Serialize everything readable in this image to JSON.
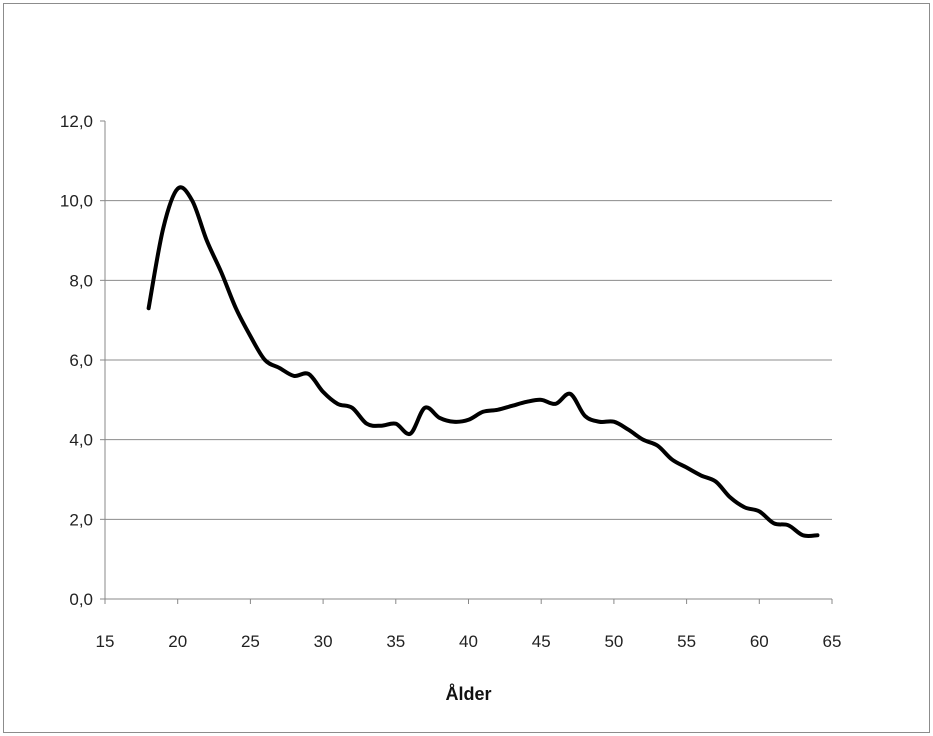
{
  "chart_data": {
    "type": "line",
    "title": "",
    "xlabel": "Ålder",
    "ylabel": "",
    "xlim": [
      15,
      65
    ],
    "ylim": [
      0,
      12
    ],
    "x_ticks": [
      15,
      20,
      25,
      30,
      35,
      40,
      45,
      50,
      55,
      60,
      65
    ],
    "x_tick_labels": [
      "15",
      "20",
      "25",
      "30",
      "35",
      "40",
      "45",
      "50",
      "55",
      "60",
      "65"
    ],
    "y_ticks": [
      0,
      2,
      4,
      6,
      8,
      10,
      12
    ],
    "y_tick_labels": [
      "0,0",
      "2,0",
      "4,0",
      "6,0",
      "8,0",
      "10,0",
      "12,0"
    ],
    "grid": "horizontal",
    "series": [
      {
        "color": "#000000",
        "x": [
          18,
          19,
          20,
          21,
          22,
          23,
          24,
          25,
          26,
          27,
          28,
          29,
          30,
          31,
          32,
          33,
          34,
          35,
          36,
          37,
          38,
          39,
          40,
          41,
          42,
          43,
          44,
          45,
          46,
          47,
          48,
          49,
          50,
          51,
          52,
          53,
          54,
          55,
          56,
          57,
          58,
          59,
          60,
          61,
          62,
          63,
          64
        ],
        "y": [
          7.3,
          9.3,
          10.3,
          10.0,
          9.0,
          8.2,
          7.3,
          6.6,
          6.0,
          5.8,
          5.6,
          5.65,
          5.2,
          4.9,
          4.8,
          4.4,
          4.35,
          4.4,
          4.15,
          4.8,
          4.55,
          4.45,
          4.5,
          4.7,
          4.75,
          4.85,
          4.95,
          5.0,
          4.9,
          5.15,
          4.6,
          4.45,
          4.45,
          4.25,
          4.0,
          3.85,
          3.5,
          3.3,
          3.1,
          2.95,
          2.55,
          2.3,
          2.2,
          1.9,
          1.85,
          1.6,
          1.6
        ]
      }
    ]
  }
}
